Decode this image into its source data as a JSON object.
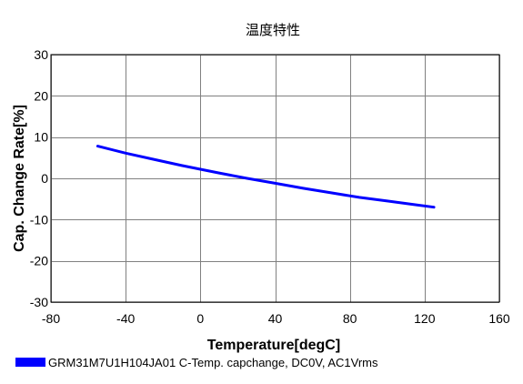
{
  "chart_data": {
    "type": "line",
    "title": "温度特性",
    "xlabel": "Temperature[degC]",
    "ylabel": "Cap. Change Rate[%]",
    "xlim": [
      -80,
      160
    ],
    "ylim": [
      -30,
      30
    ],
    "xticks": [
      -80,
      -40,
      0,
      40,
      80,
      120,
      160
    ],
    "yticks": [
      -30,
      -20,
      -10,
      0,
      10,
      20,
      30
    ],
    "grid": true,
    "legend_position": "bottom-left",
    "series": [
      {
        "name": "GRM31M7U1H104JA01 C-Temp. capchange, DC0V, AC1Vrms",
        "color": "#0000ff",
        "x": [
          -55,
          -40,
          -25,
          -10,
          0,
          10,
          25,
          40,
          55,
          70,
          85,
          100,
          115,
          125
        ],
        "y": [
          7.8,
          6.1,
          4.6,
          3.1,
          2.2,
          1.3,
          0.0,
          -1.2,
          -2.4,
          -3.5,
          -4.6,
          -5.5,
          -6.4,
          -7.0
        ]
      }
    ]
  }
}
